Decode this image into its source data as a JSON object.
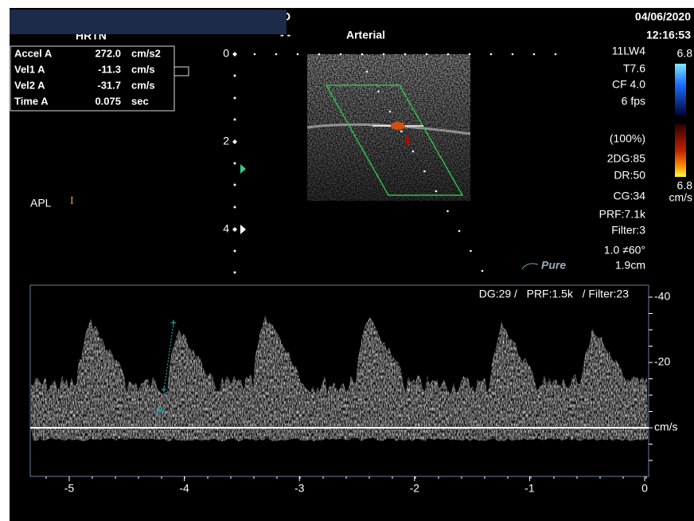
{
  "header": {
    "top_left_partial": "D",
    "patient": "HRTN",
    "dashes": "- -",
    "preset": "Arterial",
    "date": "04/06/2020",
    "time": "12:16:53"
  },
  "measurements": {
    "rows": [
      [
        "Accel A",
        "272.0",
        "cm/s2"
      ],
      [
        "Vel1 A",
        "-11.3",
        "cm/s"
      ],
      [
        "Vel2 A",
        "-31.7",
        "cm/s"
      ],
      [
        "Time A",
        "0.075",
        "sec"
      ]
    ]
  },
  "depth_scale": [
    "0",
    "2",
    "4"
  ],
  "settings": [
    "11LW4",
    "T7.6",
    "CF 4.0",
    "6 fps",
    "(100%)",
    "2DG:85",
    "DR:50",
    "CG:34",
    "PRF:7.1k",
    "Filter:3",
    "1.0 ≠60°",
    "1.9cm"
  ],
  "color_scale": {
    "top": "6.8",
    "bottom": "6.8",
    "unit": "cm/s"
  },
  "label": "APL",
  "label_marker": "I",
  "logo": "Pure",
  "doppler": {
    "settings": "DG:29 /   PRF:1.5k   / Filter:23",
    "y_labels": [
      "-40",
      "-20",
      "cm/s"
    ],
    "x_labels": [
      "-5",
      "-4",
      "-3",
      "-2",
      "-1",
      "0"
    ],
    "caliper": "A"
  }
}
